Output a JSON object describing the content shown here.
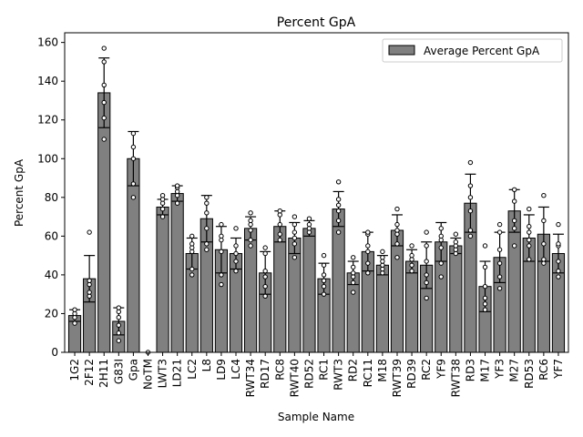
{
  "chart_data": {
    "type": "bar",
    "title": "Percent GpA",
    "xlabel": "Sample Name",
    "ylabel": "Percent GpA",
    "ylim": [
      0,
      165
    ],
    "yticks": [
      0,
      20,
      40,
      60,
      80,
      100,
      120,
      140,
      160
    ],
    "grid": false,
    "legend": {
      "position": "top-right",
      "entries": [
        "Average Percent GpA"
      ]
    },
    "colors": {
      "bar": "#808080",
      "bar_edge": "#000000",
      "error_bar": "#000000",
      "point_fill": "#ffffff",
      "point_edge": "#000000"
    },
    "categories": [
      "1G2",
      "2F12",
      "2H11",
      "G83I",
      "Gpa",
      "NoTM",
      "LWT3",
      "LD21",
      "LC2",
      "L8",
      "LD9",
      "LC4",
      "RWT34",
      "RD17",
      "RC8",
      "RWT40",
      "RD52",
      "RC1",
      "RWT3",
      "RD2",
      "RC11",
      "M18",
      "RWT39",
      "RD39",
      "RC2",
      "YF9",
      "RWT38",
      "RD3",
      "M17",
      "YF3",
      "M27",
      "RD53",
      "RC6",
      "YF7"
    ],
    "series": [
      {
        "name": "Average Percent GpA",
        "values": [
          19,
          38,
          134,
          16,
          100,
          0,
          75,
          82,
          51,
          69,
          53,
          51,
          64,
          41,
          65,
          59,
          64,
          38,
          74,
          41,
          52,
          45,
          63,
          47,
          45,
          57,
          55,
          77,
          34,
          49,
          73,
          59,
          61,
          51
        ],
        "errors": [
          3,
          12,
          18,
          7,
          14,
          0,
          4,
          4,
          8,
          12,
          12,
          8,
          6,
          11,
          8,
          8,
          4,
          8,
          9,
          6,
          10,
          5,
          8,
          6,
          12,
          10,
          4,
          15,
          13,
          13,
          11,
          12,
          14,
          10
        ]
      }
    ],
    "points": [
      [
        15,
        18,
        20,
        22
      ],
      [
        29,
        31,
        35,
        37,
        62
      ],
      [
        110,
        121,
        129,
        138,
        150,
        157
      ],
      [
        6,
        10,
        14,
        18,
        21,
        23
      ],
      [
        80,
        87,
        100,
        106,
        113
      ],
      [
        0
      ],
      [
        70,
        74,
        77,
        79,
        81
      ],
      [
        77,
        81,
        83,
        85,
        86
      ],
      [
        40,
        43,
        52,
        54,
        56,
        60
      ],
      [
        53,
        56,
        64,
        72,
        77,
        80
      ],
      [
        35,
        40,
        52,
        58,
        60,
        66
      ],
      [
        42,
        47,
        51,
        55,
        64
      ],
      [
        55,
        58,
        63,
        66,
        68,
        72
      ],
      [
        29,
        34,
        39,
        42,
        51,
        54
      ],
      [
        58,
        61,
        66,
        71,
        73
      ],
      [
        49,
        56,
        59,
        62,
        66,
        70
      ],
      [
        62,
        64,
        66,
        69
      ],
      [
        30,
        34,
        37,
        40,
        45,
        50
      ],
      [
        62,
        68,
        73,
        76,
        79,
        88
      ],
      [
        31,
        36,
        39,
        41,
        44,
        49
      ],
      [
        41,
        46,
        52,
        55,
        61,
        62
      ],
      [
        41,
        43,
        45,
        47,
        49,
        52
      ],
      [
        49,
        56,
        61,
        63,
        66,
        74
      ],
      [
        42,
        45,
        48,
        50,
        55
      ],
      [
        28,
        36,
        40,
        47,
        55,
        62
      ],
      [
        39,
        46,
        54,
        58,
        60,
        64
      ],
      [
        51,
        53,
        55,
        57,
        61
      ],
      [
        60,
        63,
        73,
        80,
        86,
        98
      ],
      [
        22,
        25,
        28,
        34,
        44,
        55
      ],
      [
        33,
        39,
        46,
        53,
        62,
        66
      ],
      [
        55,
        64,
        68,
        78,
        84
      ],
      [
        48,
        55,
        58,
        62,
        65,
        74
      ],
      [
        46,
        48,
        56,
        68,
        81
      ],
      [
        39,
        42,
        47,
        55,
        56,
        66
      ]
    ]
  }
}
